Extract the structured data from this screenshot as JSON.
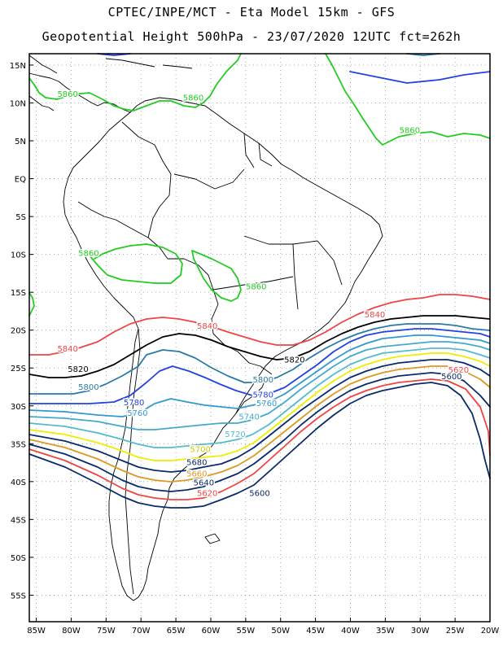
{
  "header": {
    "line1": "CPTEC/INPE/MCT -  Eta Model 15km - GFS",
    "line2": "Geopotential Height 500hPa - 23/07/2020 12UTC fct=262h"
  },
  "map": {
    "lat_ticks": [
      "15N",
      "10N",
      "5N",
      "EQ",
      "5S",
      "10S",
      "15S",
      "20S",
      "25S",
      "30S",
      "35S",
      "40S",
      "45S",
      "50S",
      "55S"
    ],
    "lat_values": [
      15,
      10,
      5,
      0,
      -5,
      -10,
      -15,
      -20,
      -25,
      -30,
      -35,
      -40,
      -45,
      -50,
      -55
    ],
    "lon_ticks": [
      "85W",
      "80W",
      "75W",
      "70W",
      "65W",
      "60W",
      "55W",
      "50W",
      "45W",
      "40W",
      "35W",
      "30W",
      "25W",
      "20W"
    ],
    "lon_values": [
      -85,
      -80,
      -75,
      -70,
      -65,
      -60,
      -55,
      -50,
      -45,
      -40,
      -35,
      -30,
      -25,
      -20
    ],
    "lon_range": [
      -86,
      -20
    ],
    "lat_range": [
      -58.5,
      16.5
    ],
    "grid": "dotted",
    "colors": {
      "c5860": "#22cc22",
      "c5840": "#ee4444",
      "c5820": "#000000",
      "c5800": "#2a7aa8",
      "c5780": "#2244dd",
      "c5760": "#3399cc",
      "c5740": "#44aacc",
      "c5720": "#55bbcc",
      "c5700": "#eeee00",
      "c5680": "#0a2a6a",
      "c5660": "#dd9922",
      "c5640": "#0a2a6a",
      "c5620": "#ee4444",
      "c5600": "#0a2a6a",
      "coast": "#000000"
    },
    "labels": [
      {
        "text": "5860",
        "lon": -80.5,
        "lat": 10.8,
        "color": "#22cc22"
      },
      {
        "text": "5860",
        "lon": -62.5,
        "lat": 10.3,
        "color": "#22cc22"
      },
      {
        "text": "5860",
        "lon": -31.5,
        "lat": 6.0,
        "color": "#22cc22"
      },
      {
        "text": "5860",
        "lon": -77.5,
        "lat": -10.2,
        "color": "#22cc22"
      },
      {
        "text": "5860",
        "lon": -53.5,
        "lat": -14.6,
        "color": "#22cc22"
      },
      {
        "text": "5840",
        "lon": -36.5,
        "lat": -18.3,
        "color": "#ee4444"
      },
      {
        "text": "5840",
        "lon": -60.5,
        "lat": -19.8,
        "color": "#ee4444"
      },
      {
        "text": "5840",
        "lon": -80.5,
        "lat": -22.8,
        "color": "#ee4444"
      },
      {
        "text": "5820",
        "lon": -79.0,
        "lat": -25.5,
        "color": "#000000"
      },
      {
        "text": "5820",
        "lon": -48.0,
        "lat": -24.3,
        "color": "#000000"
      },
      {
        "text": "5800",
        "lon": -77.5,
        "lat": -27.9,
        "color": "#2a7aa8"
      },
      {
        "text": "5800",
        "lon": -52.5,
        "lat": -26.9,
        "color": "#2a7aa8"
      },
      {
        "text": "5780",
        "lon": -71.0,
        "lat": -29.9,
        "color": "#2244dd"
      },
      {
        "text": "5780",
        "lon": -52.5,
        "lat": -28.9,
        "color": "#2244dd"
      },
      {
        "text": "5760",
        "lon": -52.0,
        "lat": -30.0,
        "color": "#3399cc"
      },
      {
        "text": "5760",
        "lon": -70.5,
        "lat": -31.3,
        "color": "#3399cc"
      },
      {
        "text": "5740",
        "lon": -54.5,
        "lat": -31.8,
        "color": "#44aacc"
      },
      {
        "text": "5720",
        "lon": -56.5,
        "lat": -34.1,
        "color": "#55bbcc"
      },
      {
        "text": "5700",
        "lon": -61.5,
        "lat": -36.1,
        "color": "#cccc00"
      },
      {
        "text": "5680",
        "lon": -62.0,
        "lat": -37.8,
        "color": "#0a2a6a"
      },
      {
        "text": "5660",
        "lon": -62.0,
        "lat": -39.3,
        "color": "#dd9922"
      },
      {
        "text": "5640",
        "lon": -61.0,
        "lat": -40.5,
        "color": "#0a2a6a"
      },
      {
        "text": "5620",
        "lon": -60.5,
        "lat": -41.9,
        "color": "#ee4444"
      },
      {
        "text": "5600",
        "lon": -53.0,
        "lat": -41.9,
        "color": "#0a2a6a"
      },
      {
        "text": "5620",
        "lon": -24.5,
        "lat": -25.6,
        "color": "#ee4444"
      },
      {
        "text": "5600",
        "lon": -25.5,
        "lat": -26.5,
        "color": "#0a2a6a"
      }
    ]
  }
}
